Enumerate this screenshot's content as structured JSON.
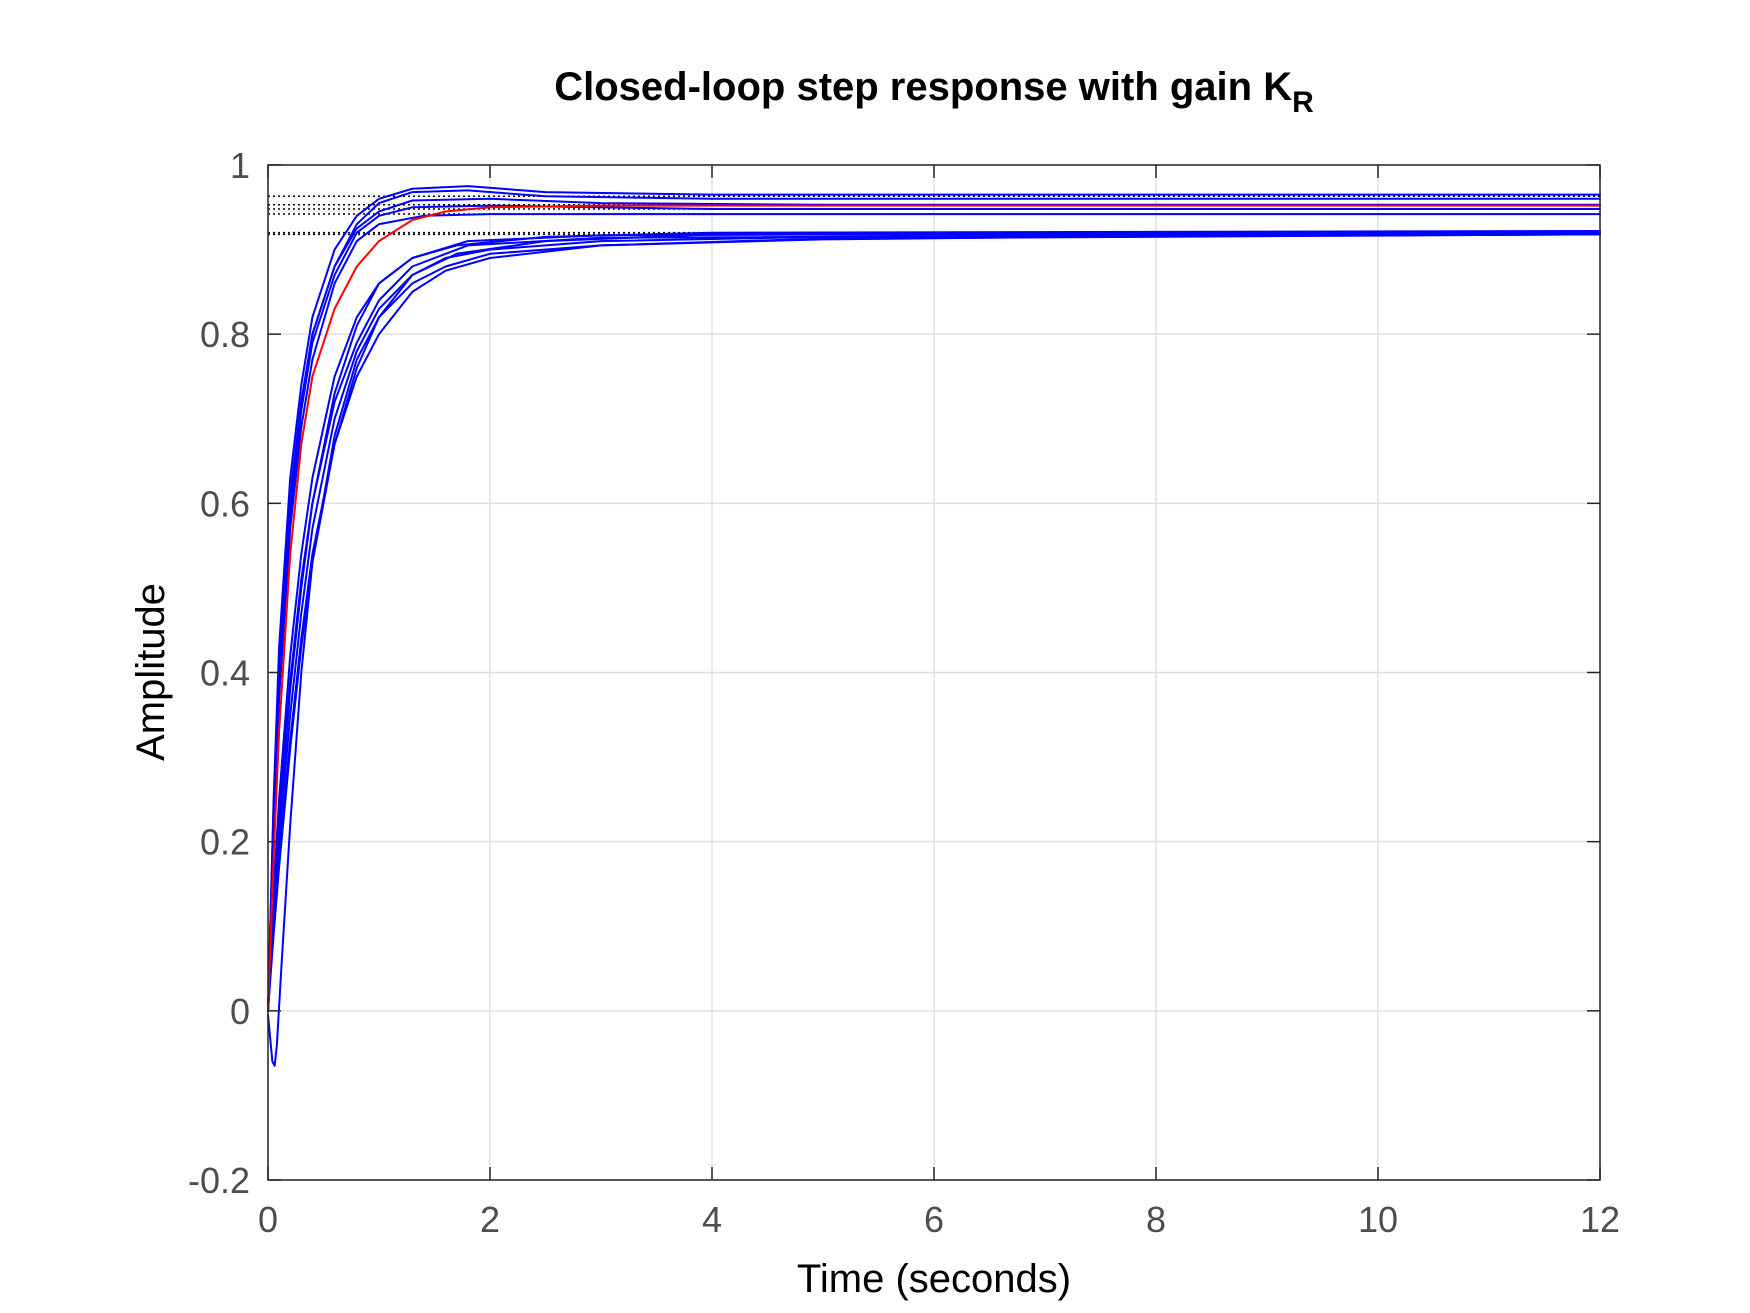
{
  "chart_data": {
    "type": "line",
    "title": "Closed-loop step response with gain K",
    "title_subscript": "R",
    "xlabel": "Time (seconds)",
    "ylabel": "Amplitude",
    "xlim": [
      0,
      12
    ],
    "ylim": [
      -0.2,
      1
    ],
    "xticks": [
      0,
      2,
      4,
      6,
      8,
      10,
      12
    ],
    "xtick_labels": [
      "0",
      "2",
      "4",
      "6",
      "8",
      "10",
      "12"
    ],
    "yticks": [
      -0.2,
      0,
      0.2,
      0.4,
      0.6,
      0.8,
      1
    ],
    "ytick_labels": [
      "-0.2",
      "0",
      "0.2",
      "0.4",
      "0.6",
      "0.8",
      "1"
    ],
    "grid": true,
    "colors": {
      "nominal": "#ff0000",
      "perturbed": "#0000ff",
      "reference": "#000000",
      "grid": "#e0e0e0",
      "axis": "#262626"
    },
    "reference_levels": [
      0.918,
      0.92,
      0.942,
      0.948,
      0.953,
      0.963
    ],
    "series": [
      {
        "color": "#ff0000",
        "values": [
          [
            0,
            0
          ],
          [
            0.05,
            0.18
          ],
          [
            0.1,
            0.33
          ],
          [
            0.2,
            0.54
          ],
          [
            0.3,
            0.67
          ],
          [
            0.4,
            0.75
          ],
          [
            0.6,
            0.83
          ],
          [
            0.8,
            0.88
          ],
          [
            1.0,
            0.91
          ],
          [
            1.3,
            0.935
          ],
          [
            1.6,
            0.945
          ],
          [
            2,
            0.95
          ],
          [
            3,
            0.952
          ],
          [
            6,
            0.952
          ],
          [
            12,
            0.952
          ]
        ]
      },
      {
        "color": "#0000ff",
        "values": [
          [
            0,
            0
          ],
          [
            0.05,
            0.25
          ],
          [
            0.1,
            0.43
          ],
          [
            0.2,
            0.63
          ],
          [
            0.3,
            0.74
          ],
          [
            0.4,
            0.82
          ],
          [
            0.6,
            0.9
          ],
          [
            0.8,
            0.94
          ],
          [
            1.0,
            0.96
          ],
          [
            1.3,
            0.972
          ],
          [
            1.8,
            0.975
          ],
          [
            2.5,
            0.968
          ],
          [
            4,
            0.965
          ],
          [
            12,
            0.965
          ]
        ]
      },
      {
        "color": "#0000ff",
        "values": [
          [
            0,
            0
          ],
          [
            0.05,
            0.24
          ],
          [
            0.1,
            0.41
          ],
          [
            0.2,
            0.61
          ],
          [
            0.3,
            0.72
          ],
          [
            0.4,
            0.8
          ],
          [
            0.6,
            0.88
          ],
          [
            0.8,
            0.93
          ],
          [
            1.0,
            0.955
          ],
          [
            1.3,
            0.968
          ],
          [
            1.8,
            0.97
          ],
          [
            2.5,
            0.963
          ],
          [
            4,
            0.96
          ],
          [
            12,
            0.96
          ]
        ]
      },
      {
        "color": "#0000ff",
        "values": [
          [
            0,
            0
          ],
          [
            0.05,
            0.23
          ],
          [
            0.1,
            0.4
          ],
          [
            0.2,
            0.6
          ],
          [
            0.3,
            0.72
          ],
          [
            0.4,
            0.8
          ],
          [
            0.6,
            0.88
          ],
          [
            0.8,
            0.925
          ],
          [
            1.0,
            0.945
          ],
          [
            1.3,
            0.958
          ],
          [
            2,
            0.96
          ],
          [
            3,
            0.955
          ],
          [
            5,
            0.953
          ],
          [
            12,
            0.953
          ]
        ]
      },
      {
        "color": "#0000ff",
        "values": [
          [
            0,
            0
          ],
          [
            0.05,
            0.22
          ],
          [
            0.1,
            0.39
          ],
          [
            0.2,
            0.59
          ],
          [
            0.3,
            0.71
          ],
          [
            0.4,
            0.79
          ],
          [
            0.6,
            0.87
          ],
          [
            0.8,
            0.92
          ],
          [
            1.0,
            0.94
          ],
          [
            1.3,
            0.95
          ],
          [
            2,
            0.952
          ],
          [
            4,
            0.948
          ],
          [
            12,
            0.948
          ]
        ]
      },
      {
        "color": "#0000ff",
        "values": [
          [
            0,
            0
          ],
          [
            0.05,
            0.21
          ],
          [
            0.1,
            0.37
          ],
          [
            0.2,
            0.57
          ],
          [
            0.3,
            0.69
          ],
          [
            0.4,
            0.77
          ],
          [
            0.6,
            0.86
          ],
          [
            0.8,
            0.91
          ],
          [
            1.0,
            0.93
          ],
          [
            1.4,
            0.94
          ],
          [
            2,
            0.942
          ],
          [
            4,
            0.942
          ],
          [
            12,
            0.942
          ]
        ]
      },
      {
        "color": "#0000ff",
        "values": [
          [
            0,
            -0.005
          ],
          [
            0.04,
            -0.06
          ],
          [
            0.06,
            -0.065
          ],
          [
            0.08,
            -0.04
          ],
          [
            0.12,
            0.05
          ],
          [
            0.2,
            0.22
          ],
          [
            0.3,
            0.4
          ],
          [
            0.4,
            0.53
          ],
          [
            0.6,
            0.68
          ],
          [
            0.8,
            0.77
          ],
          [
            1.0,
            0.82
          ],
          [
            1.3,
            0.86
          ],
          [
            1.6,
            0.88
          ],
          [
            2,
            0.895
          ],
          [
            3,
            0.905
          ],
          [
            5,
            0.912
          ],
          [
            8,
            0.916
          ],
          [
            12,
            0.918
          ]
        ]
      },
      {
        "color": "#0000ff",
        "values": [
          [
            0,
            0
          ],
          [
            0.05,
            0.1
          ],
          [
            0.1,
            0.18
          ],
          [
            0.2,
            0.32
          ],
          [
            0.3,
            0.44
          ],
          [
            0.4,
            0.54
          ],
          [
            0.6,
            0.67
          ],
          [
            0.8,
            0.75
          ],
          [
            1.0,
            0.8
          ],
          [
            1.3,
            0.85
          ],
          [
            1.6,
            0.875
          ],
          [
            2,
            0.89
          ],
          [
            3,
            0.905
          ],
          [
            5,
            0.913
          ],
          [
            12,
            0.918
          ]
        ]
      },
      {
        "color": "#0000ff",
        "values": [
          [
            0,
            0
          ],
          [
            0.05,
            0.09
          ],
          [
            0.1,
            0.17
          ],
          [
            0.2,
            0.31
          ],
          [
            0.3,
            0.43
          ],
          [
            0.4,
            0.53
          ],
          [
            0.6,
            0.67
          ],
          [
            0.8,
            0.76
          ],
          [
            1.0,
            0.82
          ],
          [
            1.3,
            0.87
          ],
          [
            1.6,
            0.89
          ],
          [
            2,
            0.9
          ],
          [
            3,
            0.91
          ],
          [
            5,
            0.915
          ],
          [
            12,
            0.92
          ]
        ]
      },
      {
        "color": "#0000ff",
        "values": [
          [
            0,
            0
          ],
          [
            0.05,
            0.11
          ],
          [
            0.1,
            0.2
          ],
          [
            0.2,
            0.35
          ],
          [
            0.3,
            0.47
          ],
          [
            0.4,
            0.57
          ],
          [
            0.6,
            0.7
          ],
          [
            0.8,
            0.78
          ],
          [
            1.0,
            0.83
          ],
          [
            1.3,
            0.87
          ],
          [
            1.7,
            0.895
          ],
          [
            2.5,
            0.91
          ],
          [
            4,
            0.918
          ],
          [
            12,
            0.921
          ]
        ]
      },
      {
        "color": "#0000ff",
        "values": [
          [
            0,
            0
          ],
          [
            0.05,
            0.12
          ],
          [
            0.1,
            0.22
          ],
          [
            0.2,
            0.38
          ],
          [
            0.3,
            0.5
          ],
          [
            0.4,
            0.6
          ],
          [
            0.6,
            0.73
          ],
          [
            0.8,
            0.81
          ],
          [
            1.0,
            0.86
          ],
          [
            1.3,
            0.89
          ],
          [
            1.7,
            0.905
          ],
          [
            2.5,
            0.915
          ],
          [
            4,
            0.92
          ],
          [
            12,
            0.922
          ]
        ]
      },
      {
        "color": "#0000ff",
        "values": [
          [
            0,
            0
          ],
          [
            0.05,
            0.14
          ],
          [
            0.1,
            0.25
          ],
          [
            0.2,
            0.42
          ],
          [
            0.3,
            0.54
          ],
          [
            0.4,
            0.63
          ],
          [
            0.6,
            0.75
          ],
          [
            0.8,
            0.82
          ],
          [
            1.0,
            0.86
          ],
          [
            1.3,
            0.89
          ],
          [
            1.8,
            0.91
          ],
          [
            3,
            0.917
          ],
          [
            12,
            0.92
          ]
        ]
      },
      {
        "color": "#0000ff",
        "values": [
          [
            0,
            0
          ],
          [
            0.05,
            0.13
          ],
          [
            0.1,
            0.23
          ],
          [
            0.2,
            0.39
          ],
          [
            0.3,
            0.51
          ],
          [
            0.4,
            0.6
          ],
          [
            0.6,
            0.72
          ],
          [
            0.8,
            0.79
          ],
          [
            1.0,
            0.84
          ],
          [
            1.3,
            0.88
          ],
          [
            1.8,
            0.905
          ],
          [
            3,
            0.914
          ],
          [
            12,
            0.918
          ]
        ]
      }
    ]
  }
}
